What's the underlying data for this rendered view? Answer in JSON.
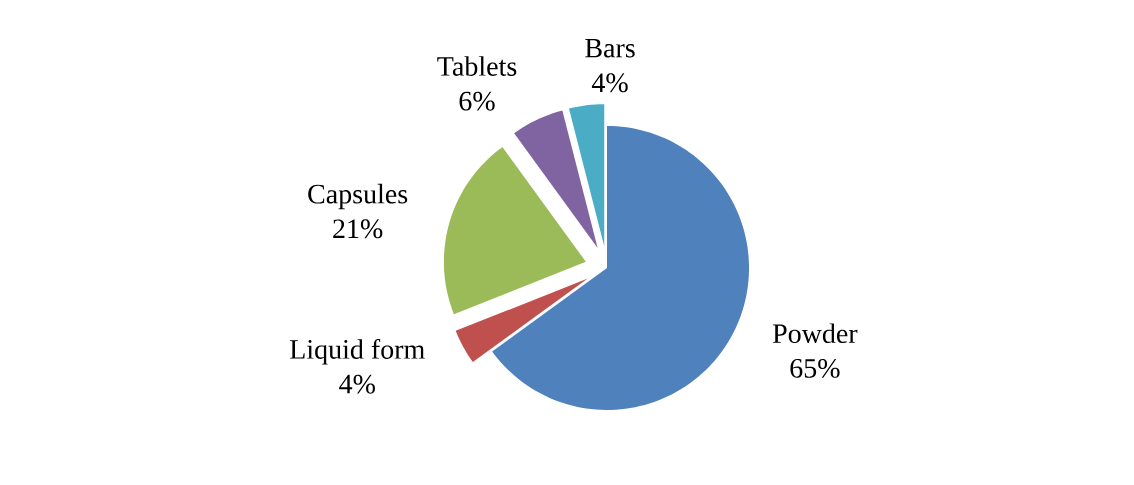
{
  "chart_data": {
    "type": "pie",
    "categories": [
      "Powder",
      "Liquid form",
      "Capsules",
      "Tablets",
      "Bars"
    ],
    "values": [
      65,
      4,
      21,
      6,
      4
    ],
    "value_labels": [
      "65%",
      "4%",
      "21%",
      "6%",
      "4%"
    ],
    "colors": [
      "#4f81bd",
      "#c0504d",
      "#9bbb59",
      "#8064a2",
      "#4bacc6"
    ]
  }
}
